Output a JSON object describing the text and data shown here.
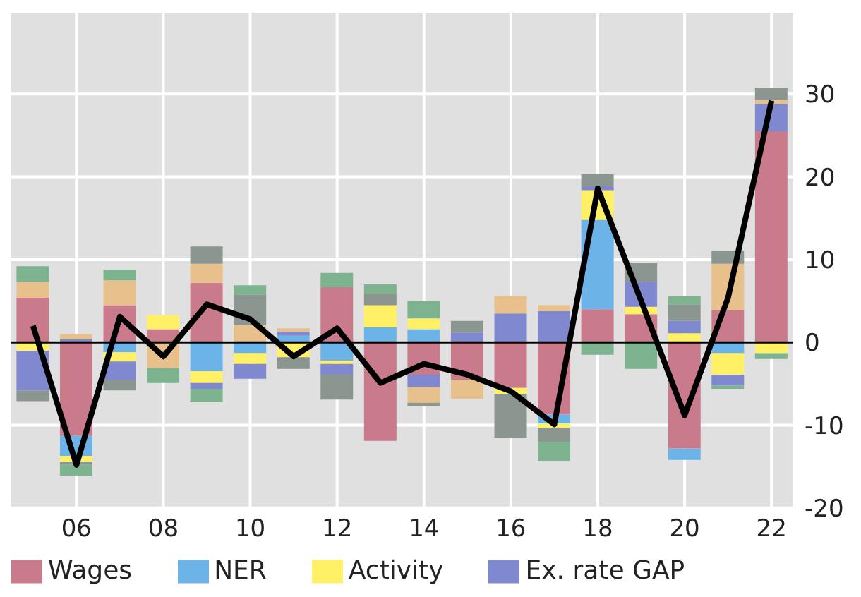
{
  "chart_data": {
    "type": "bar",
    "stacked": true,
    "categories": [
      null,
      "06",
      null,
      "08",
      null,
      "10",
      null,
      "12",
      null,
      "14",
      null,
      "16",
      null,
      "18",
      null,
      "20",
      null,
      "22"
    ],
    "series": [
      {
        "name": "Wages",
        "color": "#c97b8c",
        "values": [
          5.4,
          -11.3,
          4.5,
          1.6,
          7.2,
          null,
          null,
          6.7,
          -11.9,
          -3.9,
          -4.5,
          -5.5,
          -8.7,
          4.0,
          3.4,
          -12.8,
          3.9,
          25.5
        ]
      },
      {
        "name": "NER",
        "color": "#6cb4e8",
        "values": [
          null,
          -2.4,
          -1.2,
          null,
          -3.5,
          -1.3,
          0.8,
          -2.2,
          1.8,
          1.6,
          null,
          null,
          -1.1,
          10.8,
          null,
          -1.4,
          -1.3,
          null
        ]
      },
      {
        "name": "Activity",
        "color": "#fff066",
        "values": [
          -1.0,
          -0.7,
          -1.1,
          1.7,
          -1.4,
          -1.3,
          -1.8,
          -0.4,
          2.7,
          1.3,
          null,
          -0.7,
          -0.5,
          3.6,
          0.9,
          1.1,
          -2.6,
          -1.3
        ]
      },
      {
        "name": "Ex. rate GAP",
        "color": "#8088d0",
        "values": [
          -4.8,
          0.4,
          -2.2,
          null,
          -0.7,
          -1.8,
          0.5,
          -1.3,
          null,
          -1.5,
          1.2,
          3.5,
          3.8,
          0.5,
          3.0,
          1.5,
          -1.3,
          3.3
        ]
      },
      {
        "color": "#e8c08c",
        "values": [
          1.9,
          0.6,
          3.0,
          -3.1,
          2.3,
          2.1,
          0.4,
          null,
          null,
          -1.9,
          -2.3,
          2.1,
          0.7,
          null,
          null,
          null,
          5.6,
          0.5
        ]
      },
      {
        "color": "#8c9690",
        "values": [
          -1.3,
          -0.4,
          -1.3,
          null,
          2.1,
          3.7,
          -1.4,
          -3.0,
          1.4,
          -0.4,
          1.4,
          -5.3,
          -1.7,
          1.4,
          2.3,
          2.0,
          1.6,
          1.5
        ]
      },
      {
        "color": "#7db38e",
        "values": [
          1.9,
          -1.3,
          1.3,
          -1.8,
          -1.6,
          1.1,
          null,
          1.7,
          1.1,
          2.1,
          null,
          null,
          -2.3,
          -1.5,
          -3.2,
          1.0,
          -0.4,
          -0.7
        ]
      },
      {
        "type": "line",
        "color": "#000000",
        "line_style": "solid",
        "marker": "none",
        "values": [
          2.0,
          -14.8,
          3.1,
          -1.7,
          4.6,
          2.8,
          -1.7,
          1.7,
          -4.9,
          -2.6,
          -3.9,
          -5.9,
          -9.9,
          18.6,
          5.0,
          -8.8,
          5.4,
          29.2
        ]
      }
    ],
    "ylim": [
      -20,
      40
    ],
    "yticks": [
      -20,
      -10,
      0,
      10,
      20,
      30
    ],
    "ref_lines": [
      {
        "axis": "y",
        "value": 0,
        "color": "#000000"
      }
    ],
    "grid": true,
    "legend": "bottom"
  }
}
